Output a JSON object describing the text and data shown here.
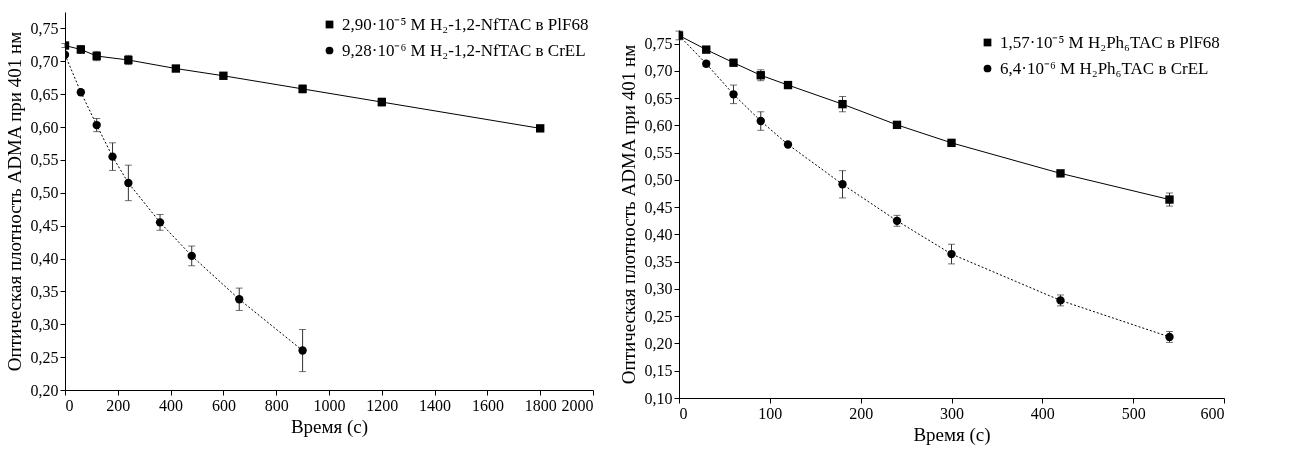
{
  "chart_data": [
    {
      "type": "line",
      "xlabel": "Время (с)",
      "ylabel": "Оптическая плотность ADMA при 401 нм",
      "xlim": [
        0,
        2000
      ],
      "xticks": [
        0,
        200,
        400,
        600,
        800,
        1000,
        1200,
        1400,
        1600,
        1800,
        2000
      ],
      "ylim": [
        0.2,
        0.775
      ],
      "yticks": [
        {
          "value": 0.2,
          "label": "0,20"
        },
        {
          "value": 0.25,
          "label": "0,25"
        },
        {
          "value": 0.3,
          "label": "0,30"
        },
        {
          "value": 0.35,
          "label": "0,35"
        },
        {
          "value": 0.4,
          "label": "0,40"
        },
        {
          "value": 0.45,
          "label": "0,45"
        },
        {
          "value": 0.5,
          "label": "0,50"
        },
        {
          "value": 0.55,
          "label": "0,55"
        },
        {
          "value": 0.6,
          "label": "0,60"
        },
        {
          "value": 0.65,
          "label": "0,65"
        },
        {
          "value": 0.7,
          "label": "0,70"
        },
        {
          "value": 0.75,
          "label": "0,75"
        }
      ],
      "grid": false,
      "legend": "top right",
      "series": [
        {
          "name": "2,90·10⁻⁵ M H₂-1,2-NfTAC в PlF68",
          "color": "#000000",
          "marker": "square",
          "line_style": "solid",
          "x": [
            0,
            60,
            120,
            240,
            420,
            600,
            900,
            1200,
            1800
          ],
          "values": [
            0.724,
            0.718,
            0.708,
            0.702,
            0.689,
            0.678,
            0.658,
            0.638,
            0.598
          ],
          "errors": [
            0.003,
            0.006,
            0.007,
            0.007,
            null,
            null,
            0.006,
            0.006,
            null
          ]
        },
        {
          "name": "9,28·10⁻⁶ M H₂-1,2-NfTAC в CrEL",
          "color": "#000000",
          "marker": "circle",
          "line_style": "dotted",
          "x": [
            0,
            60,
            120,
            180,
            240,
            360,
            480,
            660,
            900
          ],
          "values": [
            0.71,
            0.653,
            0.603,
            0.555,
            0.515,
            0.455,
            0.404,
            0.338,
            0.26
          ],
          "errors": [
            null,
            null,
            0.01,
            0.021,
            0.027,
            0.012,
            0.015,
            0.017,
            0.032
          ]
        }
      ]
    },
    {
      "type": "line",
      "xlabel": "Время (с)",
      "ylabel": "Оптическая плотность ADMA при 401 нм",
      "xlim": [
        0,
        600
      ],
      "xticks": [
        0,
        100,
        200,
        300,
        400,
        500,
        600
      ],
      "ylim": [
        0.1,
        0.775
      ],
      "yticks": [
        {
          "value": 0.1,
          "label": "0,10"
        },
        {
          "value": 0.15,
          "label": "0,15"
        },
        {
          "value": 0.2,
          "label": "0,20"
        },
        {
          "value": 0.25,
          "label": "0,25"
        },
        {
          "value": 0.3,
          "label": "0,30"
        },
        {
          "value": 0.35,
          "label": "0,35"
        },
        {
          "value": 0.4,
          "label": "0,40"
        },
        {
          "value": 0.45,
          "label": "0,45"
        },
        {
          "value": 0.5,
          "label": "0,50"
        },
        {
          "value": 0.55,
          "label": "0,55"
        },
        {
          "value": 0.6,
          "label": "0,60"
        },
        {
          "value": 0.65,
          "label": "0,65"
        },
        {
          "value": 0.7,
          "label": "0,70"
        },
        {
          "value": 0.75,
          "label": "0,75"
        }
      ],
      "grid": false,
      "legend": "top right",
      "series": [
        {
          "name": "1,57·10⁻⁵ M H₂Ph₆TAC в PlF68",
          "color": "#000000",
          "marker": "square",
          "line_style": "solid",
          "x": [
            0,
            30,
            60,
            90,
            120,
            180,
            240,
            300,
            420,
            540
          ],
          "values": [
            0.765,
            0.739,
            0.715,
            0.692,
            0.674,
            0.639,
            0.601,
            0.568,
            0.512,
            0.464
          ],
          "errors": [
            0.008,
            null,
            null,
            0.01,
            0.005,
            0.014,
            null,
            null,
            null,
            0.012
          ]
        },
        {
          "name": "6,4·10⁻⁶ M H₂Ph₆TAC в CrEL",
          "color": "#000000",
          "marker": "circle",
          "line_style": "dotted",
          "x": [
            0,
            30,
            60,
            90,
            120,
            180,
            240,
            300,
            420,
            540
          ],
          "values": [
            0.765,
            0.713,
            0.657,
            0.608,
            0.565,
            0.492,
            0.425,
            0.364,
            0.279,
            0.212
          ],
          "errors": [
            null,
            0.005,
            0.017,
            0.017,
            null,
            0.025,
            0.01,
            0.018,
            0.01,
            0.01
          ]
        }
      ]
    }
  ]
}
